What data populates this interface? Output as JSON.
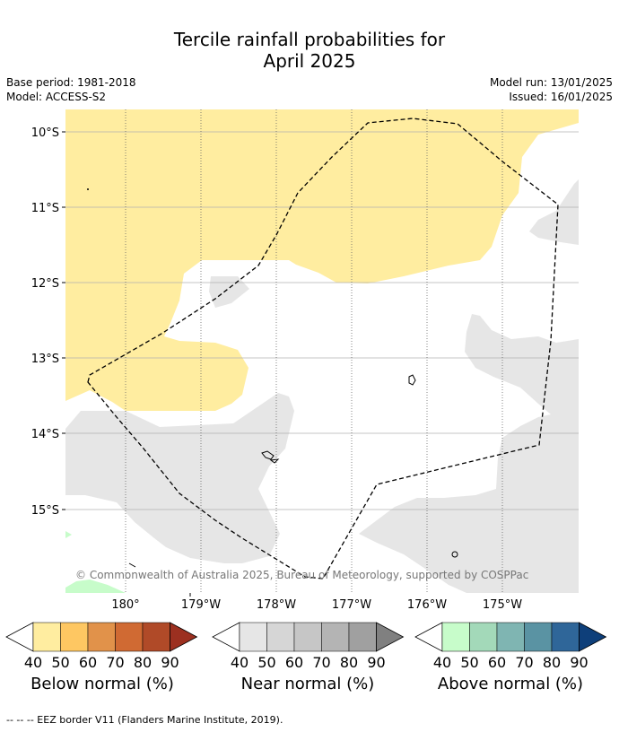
{
  "title_line1": "Tercile rainfall probabilities for",
  "title_line2": "April 2025",
  "meta": {
    "base_period": "Base period: 1981-2018",
    "model": "Model: ACCESS-S2",
    "model_run": "Model run: 13/01/2025",
    "issued": "Issued: 16/01/2025"
  },
  "map": {
    "lat_labels": [
      "10°S",
      "11°S",
      "12°S",
      "13°S",
      "14°S",
      "15°S"
    ],
    "lon_labels": [
      "180°",
      "179°W",
      "178°W",
      "177°W",
      "176°W",
      "175°W"
    ],
    "copyright": "© Commonwealth of Australia 2025, Bureau of Meteorology, supported by COSPPac",
    "colors": {
      "below_40": "#ffeda0",
      "near_40": "#e6e6e6",
      "above_40": "#c7fcca",
      "eez_line": "#000000"
    }
  },
  "colorbars": [
    {
      "label": "Below normal (%)",
      "ticks": [
        "40",
        "50",
        "60",
        "70",
        "80",
        "90"
      ],
      "colors": [
        "#ffeda0",
        "#fec762",
        "#e1924a",
        "#d06a33",
        "#b04a28",
        "#9c3020"
      ]
    },
    {
      "label": "Near normal (%)",
      "ticks": [
        "40",
        "50",
        "60",
        "70",
        "80",
        "90"
      ],
      "colors": [
        "#e6e6e6",
        "#d6d6d6",
        "#c6c6c6",
        "#b4b4b4",
        "#a0a0a0",
        "#808080"
      ]
    },
    {
      "label": "Above normal (%)",
      "ticks": [
        "40",
        "50",
        "60",
        "70",
        "80",
        "90"
      ],
      "colors": [
        "#c7fcca",
        "#a3d9b9",
        "#7fb5b2",
        "#5a93a3",
        "#2f6699",
        "#0e3f7a"
      ]
    }
  ],
  "footnote": "--  --  -- EEZ border V11 (Flanders Marine Institute, 2019)."
}
